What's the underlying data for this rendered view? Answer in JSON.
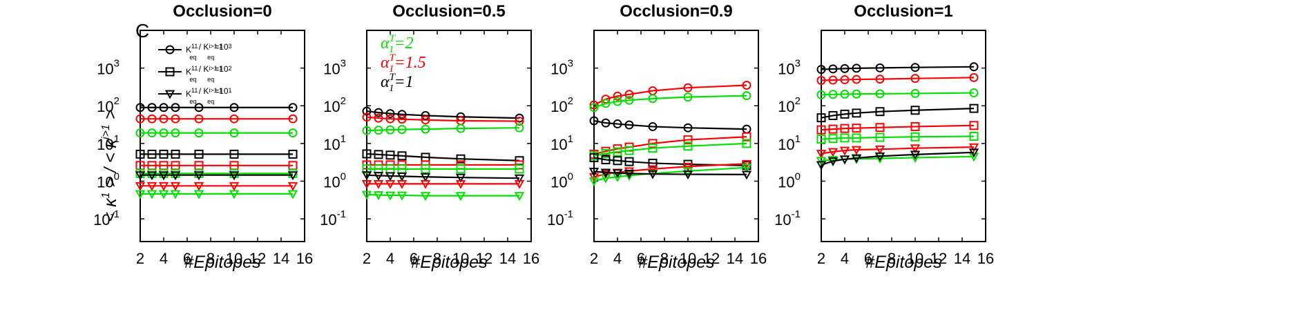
{
  "figure": {
    "panel_letter": "C",
    "ylabel": "< κ¹ > / < κʲᵗ¹ >",
    "ylabel_parts": {
      "num": "κ",
      "num_sup": "1",
      "den": "κ",
      "den_sup": "i>1"
    }
  },
  "chart_data": [
    {
      "type": "line",
      "title": "Occlusion=0",
      "xlabel": "#Epitopes",
      "yscale": "log",
      "xlim": [
        2,
        16
      ],
      "ylim": [
        0.025,
        10000
      ],
      "xticks": [
        2,
        4,
        6,
        8,
        10,
        12,
        14,
        16
      ],
      "yticks": [
        {
          "v": 0.1,
          "b": "10",
          "e": "-1"
        },
        {
          "v": 1,
          "b": "10",
          "e": "0"
        },
        {
          "v": 10,
          "b": "10",
          "e": "1"
        },
        {
          "v": 100,
          "b": "10",
          "e": "2"
        },
        {
          "v": 1000,
          "b": "10",
          "e": "3"
        }
      ],
      "x": [
        2,
        3,
        4,
        5,
        7,
        10,
        15
      ],
      "legend": {
        "placement": "top-left",
        "entries": [
          {
            "marker": "circle",
            "text": "K",
            "sub1": "eq",
            "sup1": "11",
            "mid": " / K",
            "sub2": "eq",
            "sup2": "i>1,1",
            "tail": "=10",
            "tail_sup": "3"
          },
          {
            "marker": "square",
            "text": "K",
            "sub1": "eq",
            "sup1": "11",
            "mid": " / K",
            "sub2": "eq",
            "sup2": "i>1,1",
            "tail": "=10",
            "tail_sup": "2"
          },
          {
            "marker": "triangle",
            "text": "K",
            "sub1": "eq",
            "sup1": "11",
            "mid": " / K",
            "sub2": "eq",
            "sup2": "i>1,1",
            "tail": "=10",
            "tail_sup": "1"
          }
        ]
      },
      "series": [
        {
          "marker": "circle",
          "color": "#000000",
          "values": [
            90,
            90,
            90,
            90,
            90,
            90,
            90
          ]
        },
        {
          "marker": "circle",
          "color": "#ff0000",
          "values": [
            45,
            45,
            45,
            45,
            45,
            45,
            45
          ]
        },
        {
          "marker": "circle",
          "color": "#00e000",
          "values": [
            19,
            19,
            19,
            19,
            19,
            19,
            19
          ]
        },
        {
          "marker": "square",
          "color": "#000000",
          "values": [
            5.2,
            5.2,
            5.2,
            5.2,
            5.2,
            5.2,
            5.2
          ]
        },
        {
          "marker": "square",
          "color": "#ff0000",
          "values": [
            2.6,
            2.6,
            2.6,
            2.6,
            2.6,
            2.6,
            2.6
          ]
        },
        {
          "marker": "square",
          "color": "#00e000",
          "values": [
            1.6,
            1.6,
            1.6,
            1.6,
            1.6,
            1.6,
            1.6
          ]
        },
        {
          "marker": "triangle",
          "color": "#000000",
          "values": [
            1.45,
            1.45,
            1.45,
            1.45,
            1.45,
            1.45,
            1.45
          ]
        },
        {
          "marker": "triangle",
          "color": "#ff0000",
          "values": [
            0.75,
            0.75,
            0.75,
            0.75,
            0.75,
            0.75,
            0.75
          ]
        },
        {
          "marker": "triangle",
          "color": "#00e000",
          "values": [
            0.46,
            0.46,
            0.46,
            0.46,
            0.46,
            0.46,
            0.46
          ]
        }
      ]
    },
    {
      "type": "line",
      "title": "Occlusion=0.5",
      "xlabel": "#Epitopes",
      "yscale": "log",
      "xlim": [
        2,
        16
      ],
      "ylim": [
        0.025,
        10000
      ],
      "xticks": [
        2,
        4,
        6,
        8,
        10,
        12,
        14,
        16
      ],
      "yticks": [
        {
          "v": 0.1,
          "b": "10",
          "e": "-1"
        },
        {
          "v": 1,
          "b": "10",
          "e": "0"
        },
        {
          "v": 10,
          "b": "10",
          "e": "1"
        },
        {
          "v": 100,
          "b": "10",
          "e": "2"
        },
        {
          "v": 1000,
          "b": "10",
          "e": "3"
        }
      ],
      "x": [
        2,
        3,
        4,
        5,
        7,
        10,
        15
      ],
      "annotations": [
        {
          "text": "α",
          "sup": "T",
          "sub": "1",
          "value": "=2",
          "color": "#00e000"
        },
        {
          "text": "α",
          "sup": "T",
          "sub": "1",
          "value": "=1.5",
          "color": "#ff0000"
        },
        {
          "text": "α",
          "sup": "T",
          "sub": "1",
          "value": "=1",
          "color": "#000000"
        }
      ],
      "series": [
        {
          "marker": "circle",
          "color": "#000000",
          "values": [
            72,
            66,
            62,
            59,
            55,
            51,
            47
          ]
        },
        {
          "marker": "circle",
          "color": "#ff0000",
          "values": [
            50,
            47,
            45,
            44,
            42,
            40,
            39
          ]
        },
        {
          "marker": "circle",
          "color": "#00e000",
          "values": [
            22,
            22.5,
            23,
            23.5,
            24,
            25,
            26
          ]
        },
        {
          "marker": "square",
          "color": "#000000",
          "values": [
            5.3,
            5.1,
            4.9,
            4.7,
            4.3,
            3.9,
            3.5
          ]
        },
        {
          "marker": "square",
          "color": "#ff0000",
          "values": [
            2.7,
            2.7,
            2.7,
            2.7,
            2.7,
            2.7,
            2.7
          ]
        },
        {
          "marker": "square",
          "color": "#00e000",
          "values": [
            2.1,
            2.1,
            2.1,
            2.1,
            2.1,
            2.1,
            2.1
          ]
        },
        {
          "marker": "triangle",
          "color": "#000000",
          "values": [
            1.45,
            1.4,
            1.38,
            1.35,
            1.3,
            1.25,
            1.2
          ]
        },
        {
          "marker": "triangle",
          "color": "#ff0000",
          "values": [
            0.85,
            0.85,
            0.85,
            0.85,
            0.85,
            0.85,
            0.85
          ]
        },
        {
          "marker": "triangle",
          "color": "#00e000",
          "values": [
            0.44,
            0.43,
            0.42,
            0.42,
            0.41,
            0.41,
            0.41
          ]
        }
      ]
    },
    {
      "type": "line",
      "title": "Occlusion=0.9",
      "xlabel": "#Epitopes",
      "yscale": "log",
      "xlim": [
        2,
        16
      ],
      "ylim": [
        0.025,
        10000
      ],
      "xticks": [
        2,
        4,
        6,
        8,
        10,
        12,
        14,
        16
      ],
      "yticks": [
        {
          "v": 0.1,
          "b": "10",
          "e": "-1"
        },
        {
          "v": 1,
          "b": "10",
          "e": "0"
        },
        {
          "v": 10,
          "b": "10",
          "e": "1"
        },
        {
          "v": 100,
          "b": "10",
          "e": "2"
        },
        {
          "v": 1000,
          "b": "10",
          "e": "3"
        }
      ],
      "x": [
        2,
        3,
        4,
        5,
        7,
        10,
        15
      ],
      "series": [
        {
          "marker": "circle",
          "color": "#ff0000",
          "values": [
            105,
            150,
            180,
            200,
            250,
            300,
            350
          ]
        },
        {
          "marker": "circle",
          "color": "#00e000",
          "values": [
            90,
            115,
            130,
            140,
            155,
            170,
            185
          ]
        },
        {
          "marker": "circle",
          "color": "#000000",
          "values": [
            40,
            35,
            33,
            31,
            28,
            26,
            24
          ]
        },
        {
          "marker": "square",
          "color": "#ff0000",
          "values": [
            5.2,
            6.2,
            7.2,
            8,
            10,
            12.5,
            15
          ]
        },
        {
          "marker": "square",
          "color": "#00e000",
          "values": [
            4.7,
            5.4,
            6,
            6.5,
            7.5,
            8.5,
            10
          ]
        },
        {
          "marker": "square",
          "color": "#000000",
          "values": [
            4.2,
            3.7,
            3.5,
            3.3,
            3.0,
            2.8,
            2.6
          ]
        },
        {
          "marker": "triangle",
          "color": "#ff0000",
          "values": [
            1.3,
            1.55,
            1.7,
            1.85,
            2.1,
            2.45,
            2.9
          ]
        },
        {
          "marker": "triangle",
          "color": "#00e000",
          "values": [
            1.0,
            1.2,
            1.3,
            1.4,
            1.6,
            1.85,
            2.3
          ]
        },
        {
          "marker": "triangle",
          "color": "#000000",
          "values": [
            1.8,
            1.7,
            1.65,
            1.6,
            1.55,
            1.52,
            1.5
          ]
        }
      ]
    },
    {
      "type": "line",
      "title": "Occlusion=1",
      "xlabel": "#Epitopes",
      "yscale": "log",
      "xlim": [
        2,
        16
      ],
      "ylim": [
        0.025,
        10000
      ],
      "xticks": [
        2,
        4,
        6,
        8,
        10,
        12,
        14,
        16
      ],
      "yticks": [
        {
          "v": 0.1,
          "b": "10",
          "e": "-1"
        },
        {
          "v": 1,
          "b": "10",
          "e": "0"
        },
        {
          "v": 10,
          "b": "10",
          "e": "1"
        },
        {
          "v": 100,
          "b": "10",
          "e": "2"
        },
        {
          "v": 1000,
          "b": "10",
          "e": "3"
        }
      ],
      "x": [
        2,
        3,
        4,
        5,
        7,
        10,
        15
      ],
      "series": [
        {
          "marker": "circle",
          "color": "#000000",
          "values": [
            920,
            950,
            970,
            990,
            1010,
            1040,
            1080
          ]
        },
        {
          "marker": "circle",
          "color": "#ff0000",
          "values": [
            470,
            480,
            490,
            500,
            510,
            530,
            560
          ]
        },
        {
          "marker": "circle",
          "color": "#00e000",
          "values": [
            195,
            200,
            203,
            205,
            208,
            212,
            220
          ]
        },
        {
          "marker": "square",
          "color": "#000000",
          "values": [
            48,
            55,
            60,
            64,
            70,
            76,
            85
          ]
        },
        {
          "marker": "square",
          "color": "#ff0000",
          "values": [
            23,
            24,
            25,
            25.5,
            26.5,
            28,
            30
          ]
        },
        {
          "marker": "square",
          "color": "#00e000",
          "values": [
            13,
            13.5,
            14,
            14,
            14.5,
            15,
            15.5
          ]
        },
        {
          "marker": "triangle",
          "color": "#ff0000",
          "values": [
            5.4,
            6,
            6.5,
            6.8,
            7,
            7.5,
            8
          ]
        },
        {
          "marker": "triangle",
          "color": "#00e000",
          "values": [
            3.5,
            3.7,
            3.8,
            3.9,
            4.0,
            4.2,
            4.5
          ]
        },
        {
          "marker": "triangle",
          "color": "#000000",
          "values": [
            2.7,
            3.4,
            3.8,
            4.1,
            4.6,
            5.1,
            5.8
          ]
        }
      ]
    }
  ]
}
